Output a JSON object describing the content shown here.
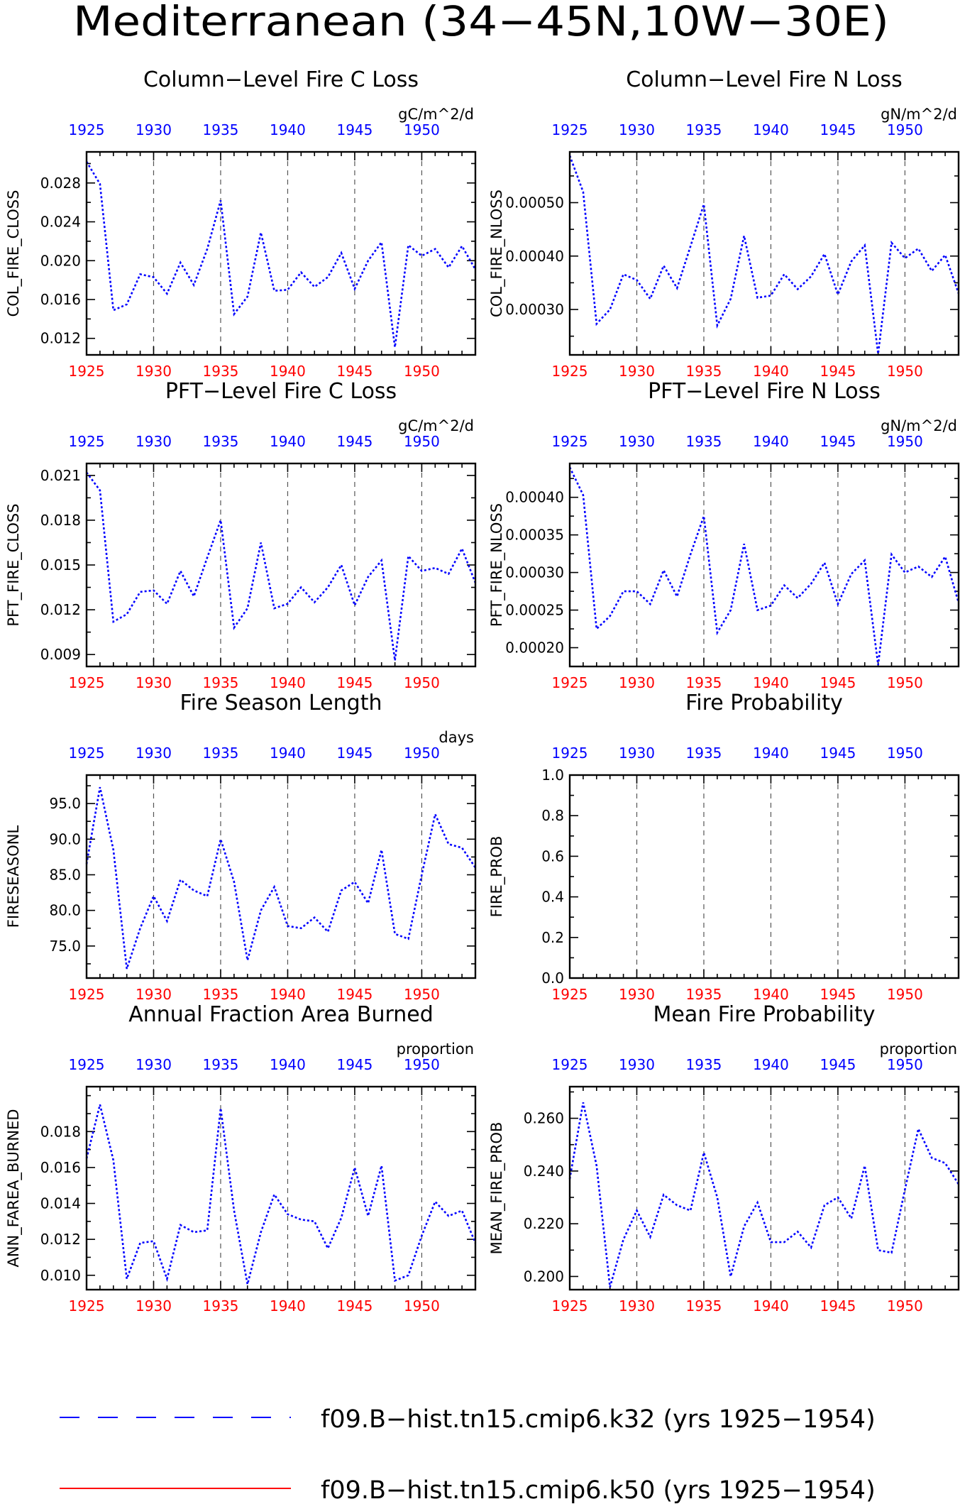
{
  "figure": {
    "title": "Mediterranean (34−45N,10W−30E)",
    "top_axis_color": "#0000ff",
    "bottom_axis_color": "#ff0000",
    "line_color": "#0000ff"
  },
  "legend": {
    "entries": [
      {
        "label": "f09.B−hist.tn15.cmip6.k32 (yrs 1925−1954)",
        "color": "#0000ff",
        "style": "dashed"
      },
      {
        "label": "f09.B−hist.tn15.cmip6.k50 (yrs 1925−1954)",
        "color": "#ff0000",
        "style": "solid"
      }
    ]
  },
  "chart_data": [
    {
      "type": "line",
      "title": "Column−Level Fire C Loss",
      "ylabel": "COL_FIRE_CLOSS",
      "units": "gC/m^2/d",
      "xlim": [
        1925,
        1954
      ],
      "xticks": [
        1925,
        1930,
        1935,
        1940,
        1945,
        1950
      ],
      "ylim": [
        0.0103,
        0.0312
      ],
      "yticks": [
        "0.012",
        "0.016",
        "0.020",
        "0.024",
        "0.028"
      ],
      "grid": "vertical dashed",
      "series": [
        {
          "x": [
            1925,
            1926,
            1927,
            1928,
            1929,
            1930,
            1931,
            1932,
            1933,
            1934,
            1935,
            1936,
            1937,
            1938,
            1939,
            1940,
            1941,
            1942,
            1943,
            1944,
            1945,
            1946,
            1947,
            1948,
            1949,
            1950,
            1951,
            1952,
            1953,
            1954
          ],
          "y": [
            0.0302,
            0.0279,
            0.0149,
            0.0155,
            0.0186,
            0.0183,
            0.0166,
            0.0198,
            0.0175,
            0.0212,
            0.0262,
            0.0145,
            0.0163,
            0.0229,
            0.0169,
            0.017,
            0.0188,
            0.0173,
            0.0183,
            0.0208,
            0.0171,
            0.02,
            0.0219,
            0.0111,
            0.0216,
            0.0205,
            0.0212,
            0.0193,
            0.0215,
            0.0191
          ]
        }
      ]
    },
    {
      "type": "line",
      "title": "Column−Level Fire N Loss",
      "ylabel": "COL_FIRE_NLOSS",
      "units": "gN/m^2/d",
      "xlim": [
        1925,
        1954
      ],
      "xticks": [
        1925,
        1930,
        1935,
        1940,
        1945,
        1950
      ],
      "ylim": [
        0.000215,
        0.000595
      ],
      "yticks": [
        "0.00030",
        "0.00040",
        "0.00050"
      ],
      "grid": "vertical dashed",
      "series": [
        {
          "x": [
            1925,
            1926,
            1927,
            1928,
            1929,
            1930,
            1931,
            1932,
            1933,
            1934,
            1935,
            1936,
            1937,
            1938,
            1939,
            1940,
            1941,
            1942,
            1943,
            1944,
            1945,
            1946,
            1947,
            1948,
            1949,
            1950,
            1951,
            1952,
            1953,
            1954
          ],
          "y": [
            0.000588,
            0.00052,
            0.000273,
            0.0003,
            0.000366,
            0.000355,
            0.00032,
            0.000382,
            0.00034,
            0.000418,
            0.000497,
            0.00027,
            0.00032,
            0.000438,
            0.000322,
            0.000326,
            0.000366,
            0.000338,
            0.000362,
            0.000404,
            0.000328,
            0.00039,
            0.00042,
            0.000217,
            0.000425,
            0.000396,
            0.000414,
            0.000372,
            0.000402,
            0.00033
          ]
        }
      ]
    },
    {
      "type": "line",
      "title": "PFT−Level Fire C Loss",
      "ylabel": "PFT_FIRE_CLOSS",
      "units": "gC/m^2/d",
      "xlim": [
        1925,
        1954
      ],
      "xticks": [
        1925,
        1930,
        1935,
        1940,
        1945,
        1950
      ],
      "ylim": [
        0.0082,
        0.0218
      ],
      "yticks": [
        "0.009",
        "0.012",
        "0.015",
        "0.018",
        "0.021"
      ],
      "grid": "vertical dashed",
      "series": [
        {
          "x": [
            1925,
            1926,
            1927,
            1928,
            1929,
            1930,
            1931,
            1932,
            1933,
            1934,
            1935,
            1936,
            1937,
            1938,
            1939,
            1940,
            1941,
            1942,
            1943,
            1944,
            1945,
            1946,
            1947,
            1948,
            1949,
            1950,
            1951,
            1952,
            1953,
            1954
          ],
          "y": [
            0.0212,
            0.02,
            0.0112,
            0.0117,
            0.0132,
            0.0133,
            0.0124,
            0.0146,
            0.0129,
            0.0155,
            0.018,
            0.0108,
            0.0121,
            0.0165,
            0.0121,
            0.0124,
            0.0135,
            0.0125,
            0.0135,
            0.015,
            0.0123,
            0.0142,
            0.0153,
            0.0086,
            0.0156,
            0.0146,
            0.0148,
            0.0144,
            0.0161,
            0.0138
          ]
        }
      ]
    },
    {
      "type": "line",
      "title": "PFT−Level Fire N Loss",
      "ylabel": "PFT_FIRE_NLOSS",
      "units": "gN/m^2/d",
      "xlim": [
        1925,
        1954
      ],
      "xticks": [
        1925,
        1930,
        1935,
        1940,
        1945,
        1950
      ],
      "ylim": [
        0.000175,
        0.000445
      ],
      "yticks": [
        "0.00020",
        "0.00025",
        "0.00030",
        "0.00035",
        "0.00040"
      ],
      "grid": "vertical dashed",
      "series": [
        {
          "x": [
            1925,
            1926,
            1927,
            1928,
            1929,
            1930,
            1931,
            1932,
            1933,
            1934,
            1935,
            1936,
            1937,
            1938,
            1939,
            1940,
            1941,
            1942,
            1943,
            1944,
            1945,
            1946,
            1947,
            1948,
            1949,
            1950,
            1951,
            1952,
            1953,
            1954
          ],
          "y": [
            0.00044,
            0.000403,
            0.000225,
            0.000242,
            0.000275,
            0.000275,
            0.000258,
            0.000303,
            0.000268,
            0.000324,
            0.000375,
            0.00022,
            0.00025,
            0.000338,
            0.00025,
            0.000256,
            0.000283,
            0.000266,
            0.000285,
            0.000313,
            0.000258,
            0.000298,
            0.000316,
            0.000177,
            0.000324,
            0.0003,
            0.000308,
            0.000294,
            0.000321,
            0.00026
          ]
        }
      ]
    },
    {
      "type": "line",
      "title": "Fire Season Length",
      "ylabel": "FIRESEASONL",
      "units": "days",
      "xlim": [
        1925,
        1954
      ],
      "xticks": [
        1925,
        1930,
        1935,
        1940,
        1945,
        1950
      ],
      "ylim": [
        70.5,
        99.0
      ],
      "yticks": [
        "75.0",
        "80.0",
        "85.0",
        "90.0",
        "95.0"
      ],
      "grid": "vertical dashed",
      "series": [
        {
          "x": [
            1925,
            1926,
            1927,
            1928,
            1929,
            1930,
            1931,
            1932,
            1933,
            1934,
            1935,
            1936,
            1937,
            1938,
            1939,
            1940,
            1941,
            1942,
            1943,
            1944,
            1945,
            1946,
            1947,
            1948,
            1949,
            1950,
            1951,
            1952,
            1953,
            1954
          ],
          "y": [
            86.5,
            97.3,
            88.5,
            71.8,
            77.5,
            82.0,
            78.5,
            84.3,
            82.8,
            82.0,
            90.0,
            84.0,
            73.0,
            80.0,
            83.3,
            77.8,
            77.5,
            79.0,
            77.0,
            82.8,
            84.0,
            81.0,
            88.5,
            76.7,
            76.0,
            85.0,
            93.5,
            89.3,
            88.8,
            86.0
          ]
        }
      ]
    },
    {
      "type": "line",
      "title": "Fire Probability",
      "ylabel": "FIRE_PROB",
      "units": "",
      "xlim": [
        1925,
        1954
      ],
      "xticks": [
        1925,
        1930,
        1935,
        1940,
        1945,
        1950
      ],
      "ylim": [
        0.0,
        1.0
      ],
      "yticks": [
        "0.0",
        "0.2",
        "0.4",
        "0.6",
        "0.8",
        "1.0"
      ],
      "grid": "vertical dashed",
      "series": []
    },
    {
      "type": "line",
      "title": "Annual Fraction Area Burned",
      "ylabel": "ANN_FAREA_BURNED",
      "units": "proportion",
      "xlim": [
        1925,
        1954
      ],
      "xticks": [
        1925,
        1930,
        1935,
        1940,
        1945,
        1950
      ],
      "ylim": [
        0.0092,
        0.0205
      ],
      "yticks": [
        "0.010",
        "0.012",
        "0.014",
        "0.016",
        "0.018"
      ],
      "grid": "vertical dashed",
      "series": [
        {
          "x": [
            1925,
            1926,
            1927,
            1928,
            1929,
            1930,
            1931,
            1932,
            1933,
            1934,
            1935,
            1936,
            1937,
            1938,
            1939,
            1940,
            1941,
            1942,
            1943,
            1944,
            1945,
            1946,
            1947,
            1948,
            1949,
            1950,
            1951,
            1952,
            1953,
            1954
          ],
          "y": [
            0.0165,
            0.0195,
            0.0164,
            0.0098,
            0.0118,
            0.0119,
            0.0098,
            0.0128,
            0.0124,
            0.0125,
            0.0193,
            0.0136,
            0.0095,
            0.0124,
            0.0145,
            0.0134,
            0.0131,
            0.013,
            0.0115,
            0.0132,
            0.016,
            0.0133,
            0.0161,
            0.0097,
            0.01,
            0.0122,
            0.0141,
            0.0133,
            0.0136,
            0.0118
          ]
        }
      ]
    },
    {
      "type": "line",
      "title": "Mean Fire Probability",
      "ylabel": "MEAN_FIRE_PROB",
      "units": "proportion",
      "xlim": [
        1925,
        1954
      ],
      "xticks": [
        1925,
        1930,
        1935,
        1940,
        1945,
        1950
      ],
      "ylim": [
        0.195,
        0.272
      ],
      "yticks": [
        "0.200",
        "0.220",
        "0.240",
        "0.260"
      ],
      "grid": "vertical dashed",
      "series": [
        {
          "x": [
            1925,
            1926,
            1927,
            1928,
            1929,
            1930,
            1931,
            1932,
            1933,
            1934,
            1935,
            1936,
            1937,
            1938,
            1939,
            1940,
            1941,
            1942,
            1943,
            1944,
            1945,
            1946,
            1947,
            1948,
            1949,
            1950,
            1951,
            1952,
            1953,
            1954
          ],
          "y": [
            0.237,
            0.266,
            0.242,
            0.196,
            0.214,
            0.225,
            0.215,
            0.231,
            0.227,
            0.225,
            0.247,
            0.23,
            0.2,
            0.219,
            0.228,
            0.213,
            0.213,
            0.217,
            0.211,
            0.227,
            0.23,
            0.222,
            0.242,
            0.21,
            0.209,
            0.233,
            0.256,
            0.245,
            0.243,
            0.235
          ]
        }
      ]
    }
  ]
}
